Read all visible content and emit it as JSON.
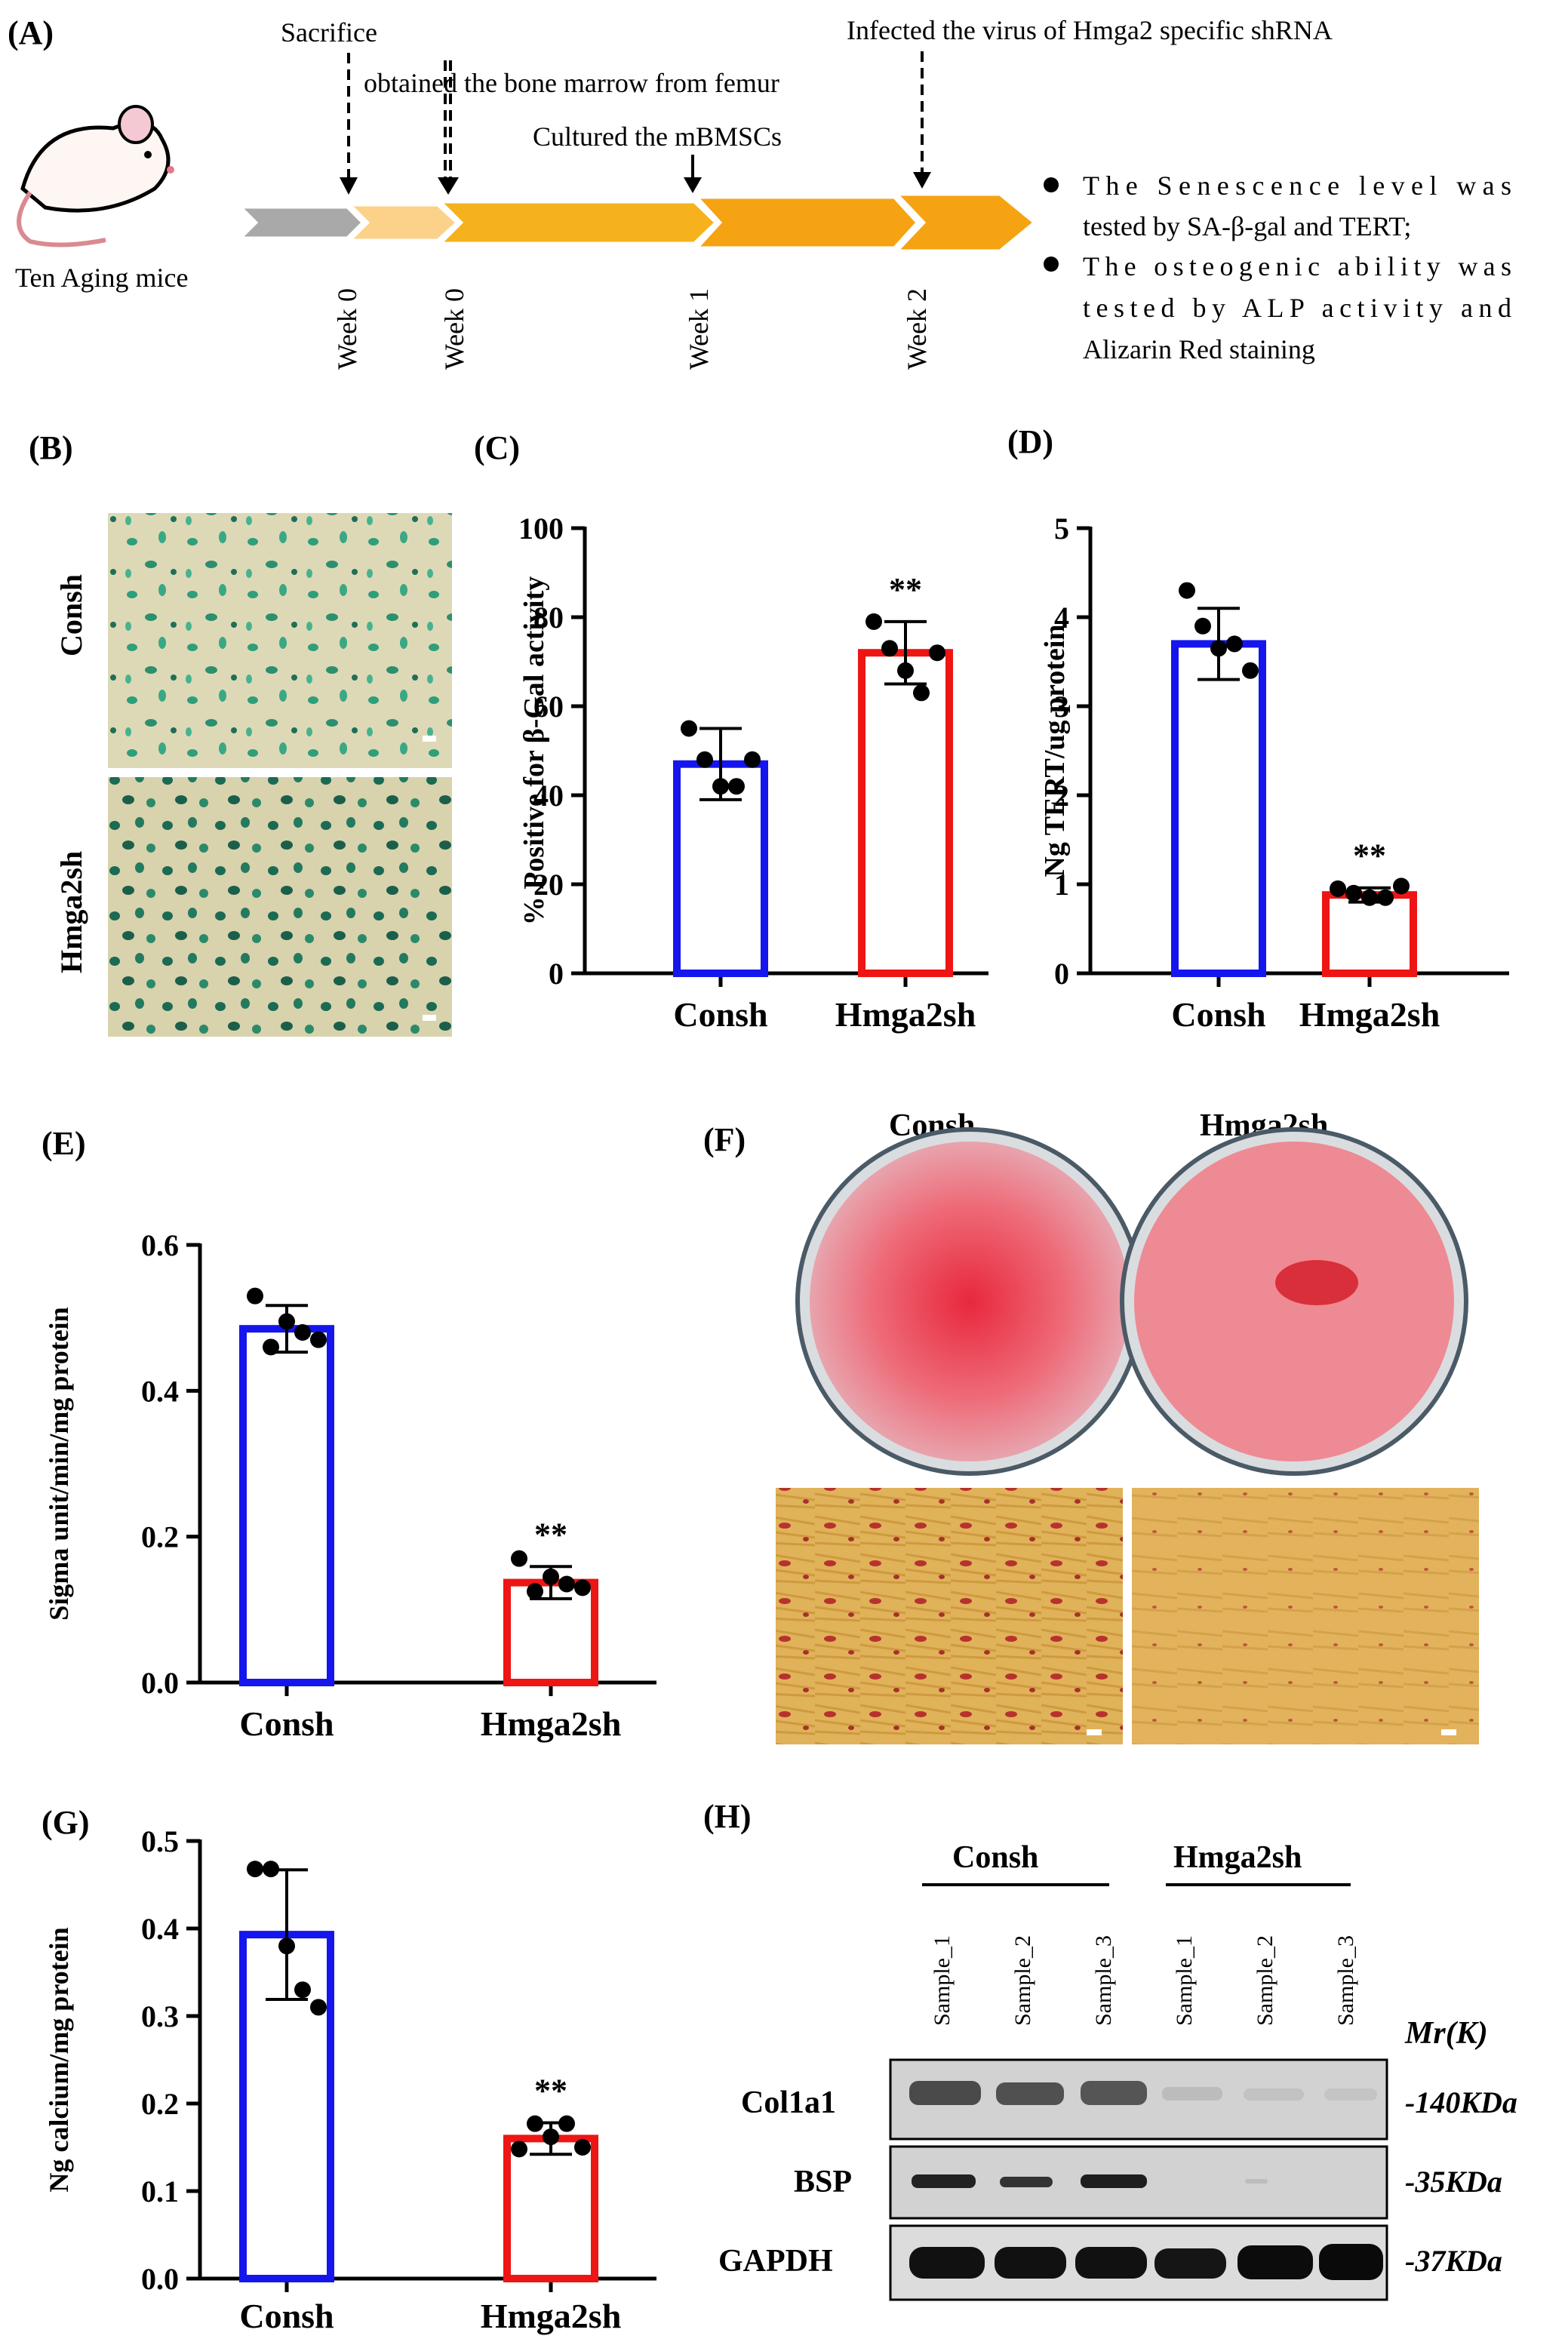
{
  "panels": {
    "A": {
      "label": "(A)",
      "mouse_caption": "Ten Aging mice",
      "events": {
        "sacrifice": "Sacrifice",
        "bone_marrow": "obtained the bone marrow from femur",
        "cultured": "Cultured the mBMSCs",
        "infected": "Infected the virus of Hmga2 specific shRNA"
      },
      "weeks": [
        "Week 0",
        "Week 0",
        "Week 1",
        "Week 2"
      ],
      "outcomes": [
        [
          "The Senescence level was",
          "tested by SA-β-gal and TERT;"
        ],
        [
          "The osteogenic ability was",
          "tested by ALP activity and",
          "Alizarin Red staining"
        ]
      ]
    },
    "B": {
      "label": "(B)",
      "rows": [
        "Consh",
        "Hmga2sh"
      ]
    },
    "F": {
      "label": "(F)",
      "wells": [
        "Consh",
        "Hmga2sh"
      ]
    },
    "H": {
      "label": "(H)",
      "groups": [
        "Consh",
        "Hmga2sh"
      ],
      "lanes": [
        "Sample_1",
        "Sample_2",
        "Sample_3",
        "Sample_1",
        "Sample_2",
        "Sample_3"
      ],
      "mr_label": "Mr(K)",
      "bands": [
        {
          "protein": "Col1a1",
          "size": "-140KDa"
        },
        {
          "protein": "BSP",
          "size": "-35KDa"
        },
        {
          "protein": "GAPDH",
          "size": "-37KDa"
        }
      ]
    }
  },
  "colors": {
    "consh_bar": "#1515ee",
    "hmga2sh_bar": "#ee1515",
    "arrow_gray": "#a9a9a9",
    "arrow_orange": "#f5a623"
  },
  "chart_data": [
    {
      "id": "C",
      "label": "(C)",
      "type": "bar",
      "title": "",
      "ylabel": "% Positive for β-Gal activity",
      "xlabel": "",
      "categories": [
        "Consh",
        "Hmga2sh"
      ],
      "values": [
        47,
        72
      ],
      "errors": [
        8,
        7
      ],
      "points": [
        [
          55,
          48,
          42,
          42,
          48
        ],
        [
          79,
          73,
          68,
          63,
          72
        ]
      ],
      "ylim": [
        0,
        100
      ],
      "yticks": [
        0,
        20,
        40,
        60,
        80,
        100
      ],
      "ytick_labels": [
        "0",
        "20",
        "40",
        "60",
        "80",
        "100"
      ],
      "annotations": [
        "",
        "**"
      ]
    },
    {
      "id": "D",
      "label": "(D)",
      "type": "bar",
      "title": "",
      "ylabel": "Ng TERT/ug protein",
      "xlabel": "",
      "categories": [
        "Consh",
        "Hmga2sh"
      ],
      "values": [
        3.7,
        0.88
      ],
      "errors": [
        0.4,
        0.08
      ],
      "points": [
        [
          4.3,
          3.9,
          3.65,
          3.7,
          3.4
        ],
        [
          0.95,
          0.9,
          0.85,
          0.85,
          0.98
        ]
      ],
      "ylim": [
        0,
        5
      ],
      "yticks": [
        0,
        1,
        2,
        3,
        4,
        5
      ],
      "ytick_labels": [
        "0",
        "1",
        "2",
        "3",
        "4",
        "5"
      ],
      "annotations": [
        "",
        "**"
      ]
    },
    {
      "id": "E",
      "label": "(E)",
      "type": "bar",
      "title": "",
      "ylabel": "Sigma unit/min/mg protein",
      "xlabel": "",
      "categories": [
        "Consh",
        "Hmga2sh"
      ],
      "values": [
        0.485,
        0.137
      ],
      "errors": [
        0.032,
        0.022
      ],
      "points": [
        [
          0.53,
          0.46,
          0.495,
          0.48,
          0.47
        ],
        [
          0.17,
          0.125,
          0.145,
          0.135,
          0.13
        ]
      ],
      "ylim": [
        0,
        0.6
      ],
      "yticks": [
        0,
        0.2,
        0.4,
        0.6
      ],
      "ytick_labels": [
        "0.0",
        "0.2",
        "0.4",
        "0.6"
      ],
      "annotations": [
        "",
        "**"
      ]
    },
    {
      "id": "G",
      "label": "(G)",
      "type": "bar",
      "title": "",
      "ylabel": "Ng calcium/mg protein",
      "xlabel": "",
      "categories": [
        "Consh",
        "Hmga2sh"
      ],
      "values": [
        0.393,
        0.16
      ],
      "errors": [
        0.074,
        0.018
      ],
      "points": [
        [
          0.468,
          0.468,
          0.38,
          0.33,
          0.31
        ],
        [
          0.148,
          0.177,
          0.162,
          0.177,
          0.15
        ]
      ],
      "ylim": [
        0,
        0.5
      ],
      "yticks": [
        0,
        0.1,
        0.2,
        0.3,
        0.4,
        0.5
      ],
      "ytick_labels": [
        "0.0",
        "0.1",
        "0.2",
        "0.3",
        "0.4",
        "0.5"
      ],
      "annotations": [
        "",
        "**"
      ]
    }
  ]
}
